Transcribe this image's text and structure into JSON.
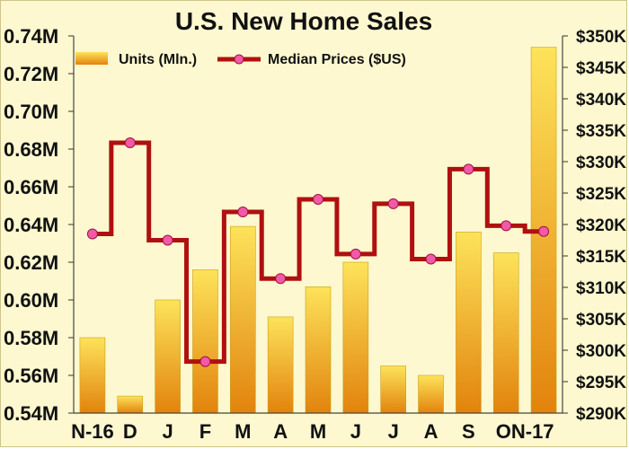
{
  "chart_data": {
    "type": "bar",
    "title": "U.S. New Home Sales",
    "categories": [
      "N-16",
      "D",
      "J",
      "F",
      "M",
      "A",
      "M",
      "J",
      "J",
      "A",
      "S",
      "O",
      "N-17"
    ],
    "x_tick_labels": [
      "N-16",
      "D",
      "J",
      "F",
      "M",
      "A",
      "M",
      "J",
      "J",
      "A",
      "S",
      "ON-17"
    ],
    "y_left": {
      "min": 0.54,
      "max": 0.74,
      "ticks": [
        "0.54M",
        "0.56M",
        "0.58M",
        "0.60M",
        "0.62M",
        "0.64M",
        "0.66M",
        "0.68M",
        "0.70M",
        "0.72M",
        "0.74M"
      ]
    },
    "y_right": {
      "min": 290,
      "max": 350,
      "ticks": [
        "$290K",
        "$295K",
        "$300K",
        "$305K",
        "$310K",
        "$315K",
        "$320K",
        "$325K",
        "$330K",
        "$335K",
        "$340K",
        "$345K",
        "$350K"
      ]
    },
    "series": [
      {
        "name": "Units (Mln.)",
        "type": "bar",
        "axis": "left",
        "values": [
          0.58,
          0.549,
          0.6,
          0.616,
          0.639,
          0.591,
          0.607,
          0.62,
          0.565,
          0.56,
          0.636,
          0.625,
          0.734
        ]
      },
      {
        "name": "Median Prices ($US)",
        "type": "step-line",
        "axis": "right",
        "values": [
          318.5,
          333.0,
          317.5,
          298.2,
          322.0,
          311.4,
          324.0,
          315.3,
          323.3,
          314.5,
          328.8,
          319.8,
          318.9
        ]
      }
    ],
    "grid": false,
    "legend": "top",
    "colors": {
      "bar_top": "#fde35a",
      "bar_bottom": "#e2830d",
      "line": "#b01010",
      "marker": "#f25aa8",
      "background": "#fdf8cf"
    }
  }
}
